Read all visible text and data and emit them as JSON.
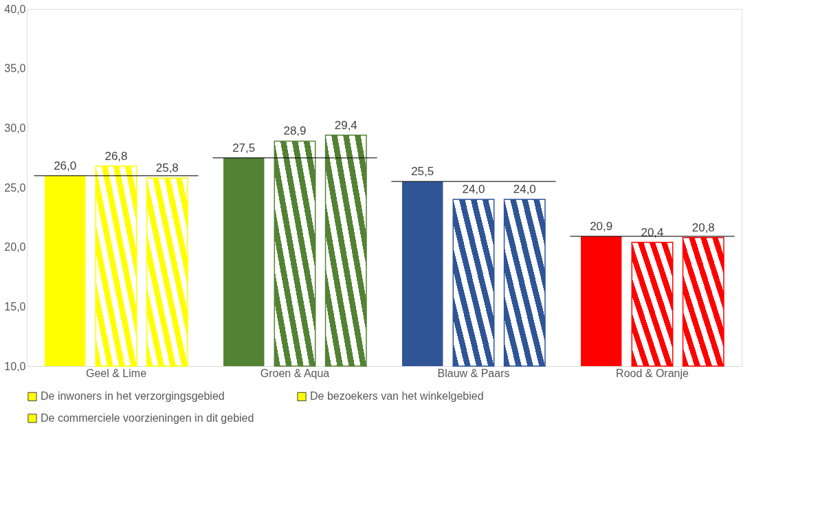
{
  "chart_data": {
    "type": "bar",
    "categories": [
      "Geel & Lime",
      "Groen & Aqua",
      "Blauw & Paars",
      "Rood & Oranje"
    ],
    "series": [
      {
        "name": "De inwoners in het verzorgingsgebied",
        "colors": [
          "#ffff00",
          "#548235",
          "#2f5597",
          "#ff0000"
        ],
        "values": [
          26.0,
          27.5,
          25.5,
          20.9
        ],
        "value_labels": [
          "26,0",
          "27,5",
          "25,5",
          "20,9"
        ]
      },
      {
        "name": "De bezoekers van het winkelgebied",
        "colors": [
          "#ffff00",
          "#548235",
          "#2f5597",
          "#ff0000"
        ],
        "values": [
          26.8,
          28.9,
          24.0,
          20.4
        ],
        "value_labels": [
          "26,8",
          "28,9",
          "24,0",
          "20,4"
        ]
      },
      {
        "name": "De commerciele voorzieningen in dit gebied",
        "colors": [
          "#ffff00",
          "#548235",
          "#2f5597",
          "#ff0000"
        ],
        "values": [
          25.8,
          29.4,
          24.0,
          20.8
        ],
        "value_labels": [
          "25,8",
          "29,4",
          "24,0",
          "20,8"
        ]
      }
    ],
    "ylim": [
      10,
      40
    ],
    "yticks": [
      {
        "value": 10,
        "label": "10,0"
      },
      {
        "value": 15,
        "label": "15,0"
      },
      {
        "value": 20,
        "label": "20,0"
      },
      {
        "value": 25,
        "label": "25,0"
      },
      {
        "value": 30,
        "label": "30,0"
      },
      {
        "value": 35,
        "label": "35,0"
      },
      {
        "value": 40,
        "label": "40,0"
      }
    ],
    "ref_lines": [
      {
        "axis": "y",
        "value": 26.0,
        "color": "#000000"
      },
      {
        "axis": "y",
        "value": 27.5,
        "color": "#000000"
      },
      {
        "axis": "y",
        "value": 25.5,
        "color": "#000000"
      },
      {
        "axis": "y",
        "value": 20.9,
        "color": "#000000"
      }
    ],
    "grid": false,
    "legend": "bottom"
  }
}
